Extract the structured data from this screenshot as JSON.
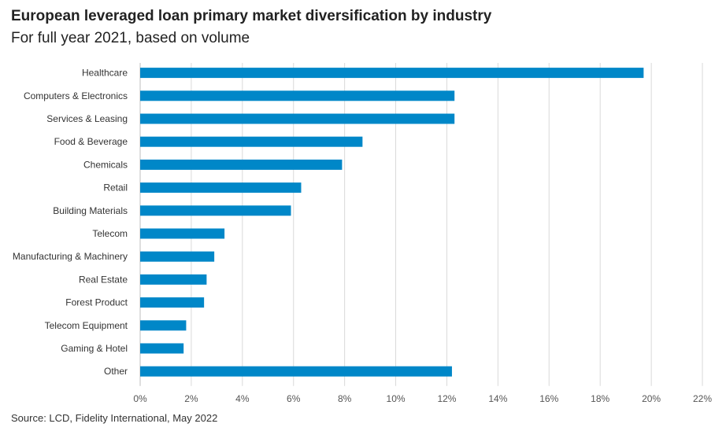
{
  "chart_data": {
    "type": "bar",
    "orientation": "horizontal",
    "title": "European leveraged loan primary market diversification by industry",
    "subtitle": "For full year 2021, based on volume",
    "source": "Source: LCD, Fidelity International, May 2022",
    "categories": [
      "Healthcare",
      "Computers & Electronics",
      "Services & Leasing",
      "Food & Beverage",
      "Chemicals",
      "Retail",
      "Building Materials",
      "Telecom",
      "Manufacturing & Machinery",
      "Real Estate",
      "Forest Product",
      "Telecom Equipment",
      "Gaming & Hotel",
      "Other"
    ],
    "values": [
      19.7,
      12.3,
      12.3,
      8.7,
      7.9,
      6.3,
      5.9,
      3.3,
      2.9,
      2.6,
      2.5,
      1.8,
      1.7,
      12.2
    ],
    "xlim": [
      0,
      22
    ],
    "xticks": [
      0,
      2,
      4,
      6,
      8,
      10,
      12,
      14,
      16,
      18,
      20,
      22
    ],
    "xtick_labels": [
      "0%",
      "2%",
      "4%",
      "6%",
      "8%",
      "10%",
      "12%",
      "14%",
      "16%",
      "18%",
      "20%",
      "22%"
    ],
    "bar_color": "#0087c8",
    "grid": true,
    "legend": "none"
  }
}
